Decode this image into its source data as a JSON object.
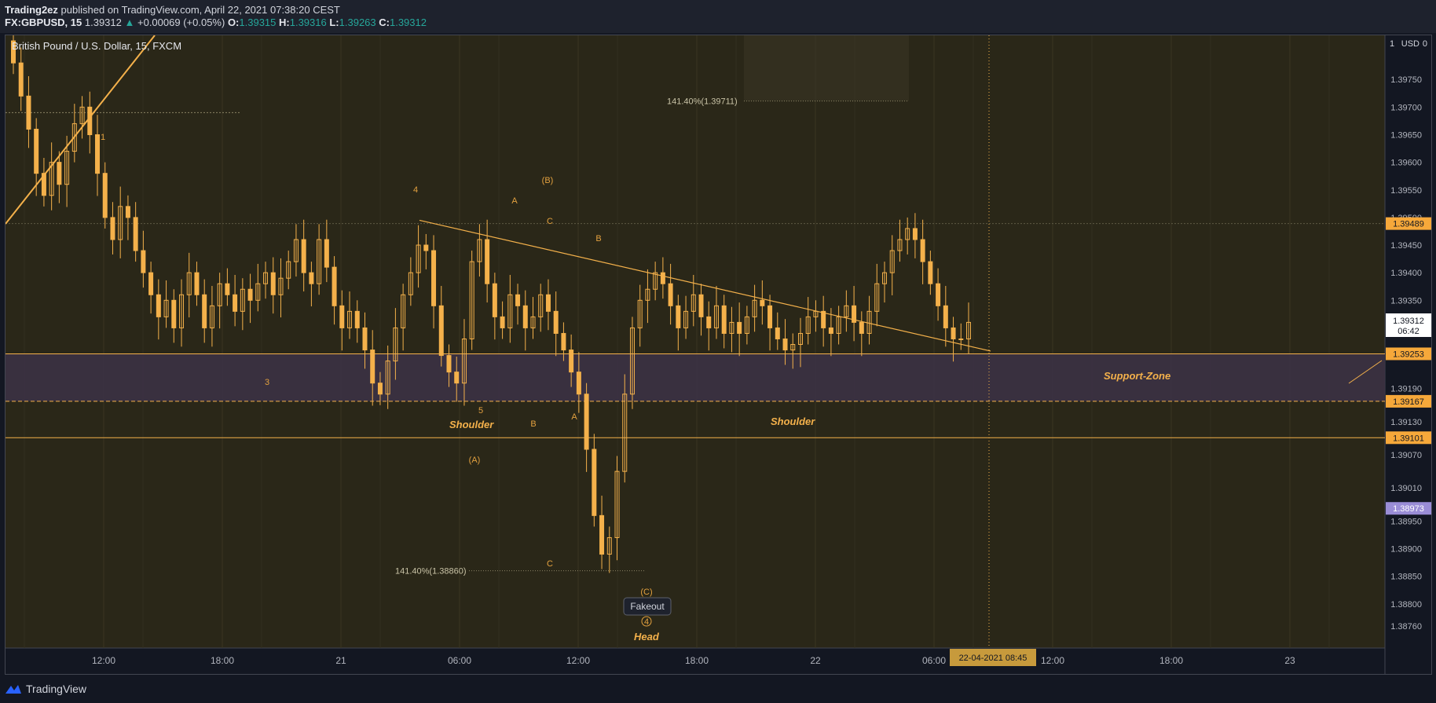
{
  "header": {
    "author": "Trading2ez",
    "published_text": "published on TradingView.com, April 22, 2021 07:38:20 CEST",
    "symbol": "FX:GBPUSD, 15",
    "last": "1.39312",
    "change": "+0.00069 (+0.05%)",
    "o_label": "O:",
    "o": "1.39315",
    "h_label": "H:",
    "h": "1.39316",
    "l_label": "L:",
    "l": "1.39263",
    "c_label": "C:",
    "c": "1.39312"
  },
  "footer": {
    "brand": "TradingView"
  },
  "colors": {
    "background": "#2a2718",
    "candle": "#f4b14b",
    "line": "#f4b14b",
    "zone": "#3b3244",
    "axis_text": "#b2b5be",
    "label_bg": "#f6a83a",
    "purple_label": "#9a8dd6"
  },
  "chart_data": {
    "type": "candlestick",
    "title": "British Pound / U.S. Dollar, 15, FXCM",
    "currency": "USD",
    "ylim": [
      1.3872,
      1.3983
    ],
    "y_ticks": [
      "1.39750",
      "1.39700",
      "1.39650",
      "1.39600",
      "1.39550",
      "1.39500",
      "1.39450",
      "1.39400",
      "1.39350",
      "1.39190",
      "1.39130",
      "1.39070",
      "1.39010",
      "1.38950",
      "1.38900",
      "1.38850",
      "1.38800",
      "1.38760"
    ],
    "x_ticks": [
      "12:00",
      "18:00",
      "21",
      "06:00",
      "12:00",
      "18:00",
      "22",
      "06:00",
      "12:00",
      "18:00",
      "23"
    ],
    "crosshair_x_label": "22-04-2021   08:45",
    "last_price_label": "1.39312",
    "countdown": "06:42",
    "price_labels": [
      "1.39489",
      "1.39253",
      "1.39167",
      "1.39101",
      "1.38973"
    ],
    "horizontal_levels": [
      1.39253,
      1.39167,
      1.39101
    ],
    "support_zone": [
      1.39167,
      1.39253
    ],
    "fib_labels": [
      "141.40%(1.39711)",
      "141.40%(1.38860)"
    ],
    "fib_levels": [
      1.39711,
      1.3886
    ],
    "wave_labels": [
      "1",
      "3",
      "4",
      "5",
      "A",
      "C",
      "(B)",
      "B",
      "(A)",
      "B",
      "A",
      "C",
      "(C)",
      "4"
    ],
    "pattern_labels": [
      "Shoulder",
      "Shoulder",
      "Head",
      "Support-Zone"
    ],
    "callout": "Fakeout",
    "series_close": [
      1.3978,
      1.3972,
      1.3966,
      1.3958,
      1.3954,
      1.396,
      1.3956,
      1.3962,
      1.3967,
      1.397,
      1.3965,
      1.3958,
      1.395,
      1.3946,
      1.3952,
      1.395,
      1.3944,
      1.394,
      1.3936,
      1.3932,
      1.3935,
      1.393,
      1.3936,
      1.394,
      1.3936,
      1.393,
      1.3934,
      1.3938,
      1.3936,
      1.3933,
      1.3937,
      1.3935,
      1.3938,
      1.394,
      1.3936,
      1.3939,
      1.3942,
      1.3946,
      1.394,
      1.3938,
      1.3946,
      1.3941,
      1.3934,
      1.393,
      1.3933,
      1.393,
      1.3926,
      1.392,
      1.3918,
      1.3924,
      1.393,
      1.3936,
      1.394,
      1.3945,
      1.3944,
      1.3934,
      1.3925,
      1.3922,
      1.392,
      1.3928,
      1.3942,
      1.3946,
      1.3938,
      1.3932,
      1.393,
      1.3936,
      1.3934,
      1.393,
      1.3932,
      1.3936,
      1.3933,
      1.3929,
      1.3926,
      1.3922,
      1.3918,
      1.3908,
      1.3896,
      1.3889,
      1.3892,
      1.3904,
      1.3918,
      1.393,
      1.3935,
      1.3937,
      1.394,
      1.3938,
      1.3934,
      1.393,
      1.3933,
      1.3936,
      1.3932,
      1.393,
      1.3934,
      1.3929,
      1.3931,
      1.3929,
      1.3932,
      1.3935,
      1.3934,
      1.393,
      1.3928,
      1.3926,
      1.3927,
      1.3929,
      1.3932,
      1.3933,
      1.393,
      1.3929,
      1.3932,
      1.3934,
      1.3931,
      1.3929,
      1.3933,
      1.3938,
      1.394,
      1.3944,
      1.3946,
      1.3948,
      1.3946,
      1.3942,
      1.3938,
      1.3934,
      1.393,
      1.3928,
      1.3928,
      1.3931
    ],
    "time_range": [
      "2021-04-20 09:00",
      "2021-04-22 08:45"
    ]
  }
}
